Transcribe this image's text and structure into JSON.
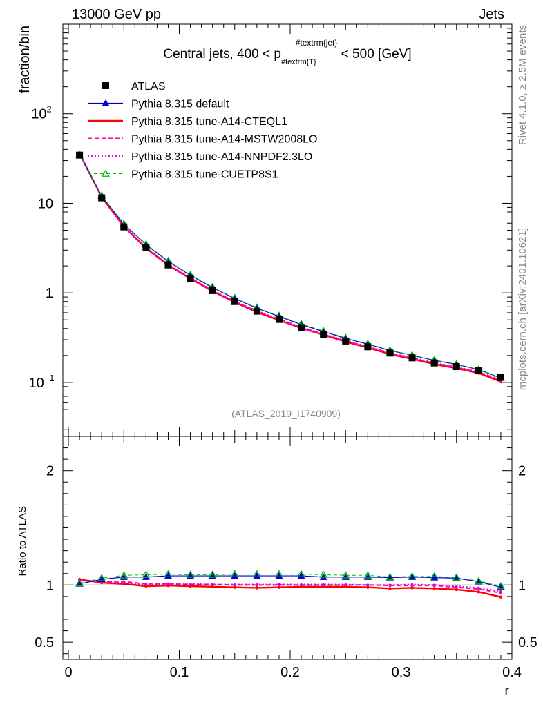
{
  "header": {
    "left": "13000 GeV pp",
    "right": "Jets"
  },
  "side_labels": {
    "rivet": "Rivet 4.1.0, ≥ 2.5M events",
    "mcplots": "mcplots.cern.ch [arXiv:2401.10621]"
  },
  "colors": {
    "atlas": "#000000",
    "default": "#0000cc",
    "cteql1": "#ff0000",
    "mstw": "#ff00aa",
    "nnpdf": "#ee00ee",
    "cuetp": "#00bb00"
  },
  "chart_data": [
    {
      "type": "line",
      "title": "Central jets, 400 < p_{#textrm{T}}^{#textrm{jet}} < 500 [GeV]",
      "title_parts": {
        "pre": "Central jets, 400 < p",
        "sub": "#textrm{T}",
        "sup": "#textrm{jet}",
        "post": " < 500 [GeV]"
      },
      "ylabel": "fraction/bin",
      "yscale": "log",
      "ylim": [
        0.025,
        1000
      ],
      "yticks": [
        {
          "value": 0.1,
          "label": "10",
          "exp": "−1"
        },
        {
          "value": 1,
          "label": "1",
          "exp": ""
        },
        {
          "value": 10,
          "label": "10",
          "exp": ""
        },
        {
          "value": 100,
          "label": "10",
          "exp": "2"
        }
      ],
      "xlim": [
        -0.005,
        0.4
      ],
      "watermark": "(ATLAS_2019_I1740909)",
      "x": [
        0.01,
        0.03,
        0.05,
        0.07,
        0.09,
        0.11,
        0.13,
        0.15,
        0.17,
        0.19,
        0.21,
        0.23,
        0.25,
        0.27,
        0.29,
        0.31,
        0.33,
        0.35,
        0.37,
        0.39
      ],
      "series": [
        {
          "name": "ATLAS",
          "key": "atlas",
          "style": "marker-square",
          "values": [
            34.5,
            11.5,
            5.45,
            3.18,
            2.05,
            1.45,
            1.06,
            0.8,
            0.625,
            0.505,
            0.41,
            0.345,
            0.29,
            0.25,
            0.213,
            0.188,
            0.165,
            0.15,
            0.135,
            0.114
          ]
        },
        {
          "name": "Pythia 8.315 default",
          "key": "default",
          "style": "line-triangle",
          "values": [
            34.9,
            12.1,
            5.85,
            3.45,
            2.24,
            1.57,
            1.145,
            0.865,
            0.675,
            0.545,
            0.443,
            0.37,
            0.31,
            0.268,
            0.227,
            0.201,
            0.176,
            0.159,
            0.139,
            0.112
          ]
        },
        {
          "name": "Pythia 8.315 tune-A14-CTEQL1",
          "key": "cteql1",
          "style": "line-solid",
          "values": [
            36.2,
            11.7,
            5.5,
            3.15,
            2.04,
            1.44,
            1.045,
            0.785,
            0.61,
            0.495,
            0.405,
            0.34,
            0.285,
            0.245,
            0.207,
            0.183,
            0.16,
            0.144,
            0.127,
            0.102
          ]
        },
        {
          "name": "Pythia 8.315 tune-A14-MSTW2008LO",
          "key": "mstw",
          "style": "line-dashed",
          "values": [
            36.0,
            11.8,
            5.6,
            3.2,
            2.07,
            1.46,
            1.065,
            0.8,
            0.625,
            0.505,
            0.41,
            0.345,
            0.29,
            0.25,
            0.212,
            0.187,
            0.164,
            0.147,
            0.13,
            0.106
          ]
        },
        {
          "name": "Pythia 8.315 tune-A14-NNPDF2.3LO",
          "key": "nnpdf",
          "style": "line-dotted",
          "values": [
            35.8,
            11.9,
            5.55,
            3.2,
            2.07,
            1.47,
            1.065,
            0.805,
            0.63,
            0.51,
            0.415,
            0.348,
            0.293,
            0.252,
            0.214,
            0.189,
            0.166,
            0.149,
            0.131,
            0.108
          ]
        },
        {
          "name": "Pythia 8.315 tune-CUETP8S1",
          "key": "cuetp",
          "style": "dashed-open-triangle",
          "values": [
            35.0,
            12.2,
            5.9,
            3.5,
            2.27,
            1.59,
            1.16,
            0.875,
            0.685,
            0.555,
            0.45,
            0.376,
            0.315,
            0.27,
            0.229,
            0.202,
            0.178,
            0.16,
            0.14,
            0.113
          ]
        }
      ]
    },
    {
      "type": "line",
      "ylabel": "Ratio to ATLAS",
      "xlabel": "r",
      "ylim": [
        0.35,
        2.3
      ],
      "yticks": [
        {
          "value": 0.5,
          "label": "0.5"
        },
        {
          "value": 1,
          "label": "1"
        },
        {
          "value": 2,
          "label": "2"
        }
      ],
      "xlim": [
        -0.005,
        0.4
      ],
      "xticks": [
        {
          "value": 0,
          "label": "0"
        },
        {
          "value": 0.1,
          "label": "0.1"
        },
        {
          "value": 0.2,
          "label": "0.2"
        },
        {
          "value": 0.3,
          "label": "0.3"
        },
        {
          "value": 0.4,
          "label": "0.4"
        }
      ],
      "x": [
        0.01,
        0.03,
        0.05,
        0.07,
        0.09,
        0.11,
        0.13,
        0.15,
        0.17,
        0.19,
        0.21,
        0.23,
        0.25,
        0.27,
        0.29,
        0.31,
        0.33,
        0.35,
        0.37,
        0.39
      ],
      "series": [
        {
          "name": "Pythia 8.315 default",
          "key": "default",
          "style": "line-triangle",
          "values": [
            1.01,
            1.05,
            1.07,
            1.07,
            1.08,
            1.08,
            1.08,
            1.08,
            1.08,
            1.08,
            1.08,
            1.07,
            1.07,
            1.07,
            1.065,
            1.07,
            1.065,
            1.06,
            1.03,
            0.98
          ]
        },
        {
          "name": "Pythia 8.315 tune-A14-CTEQL1",
          "key": "cteql1",
          "style": "line-solid",
          "values": [
            1.05,
            1.02,
            1.01,
            0.99,
            0.995,
            0.99,
            0.985,
            0.98,
            0.975,
            0.98,
            0.985,
            0.985,
            0.985,
            0.98,
            0.97,
            0.975,
            0.97,
            0.96,
            0.94,
            0.895
          ]
        },
        {
          "name": "Pythia 8.315 tune-A14-MSTW2008LO",
          "key": "mstw",
          "style": "line-dashed",
          "values": [
            1.04,
            1.025,
            1.03,
            1.01,
            1.01,
            1.005,
            1.005,
            1.0,
            1.0,
            1.0,
            1.0,
            1.0,
            1.0,
            1.0,
            0.995,
            0.995,
            0.995,
            0.98,
            0.965,
            0.93
          ]
        },
        {
          "name": "Pythia 8.315 tune-A14-NNPDF2.3LO",
          "key": "nnpdf",
          "style": "line-dotted",
          "values": [
            1.035,
            1.035,
            1.02,
            1.005,
            1.01,
            1.01,
            1.005,
            1.005,
            1.005,
            1.005,
            1.005,
            1.005,
            1.005,
            1.0,
            1.0,
            1.005,
            1.0,
            0.99,
            0.975,
            0.945
          ]
        },
        {
          "name": "Pythia 8.315 tune-CUETP8S1",
          "key": "cuetp",
          "style": "dashed-open-triangle",
          "values": [
            1.015,
            1.06,
            1.085,
            1.09,
            1.095,
            1.09,
            1.09,
            1.095,
            1.095,
            1.095,
            1.095,
            1.09,
            1.085,
            1.085,
            1.07,
            1.075,
            1.075,
            1.065,
            1.035,
            0.99
          ]
        }
      ]
    }
  ]
}
